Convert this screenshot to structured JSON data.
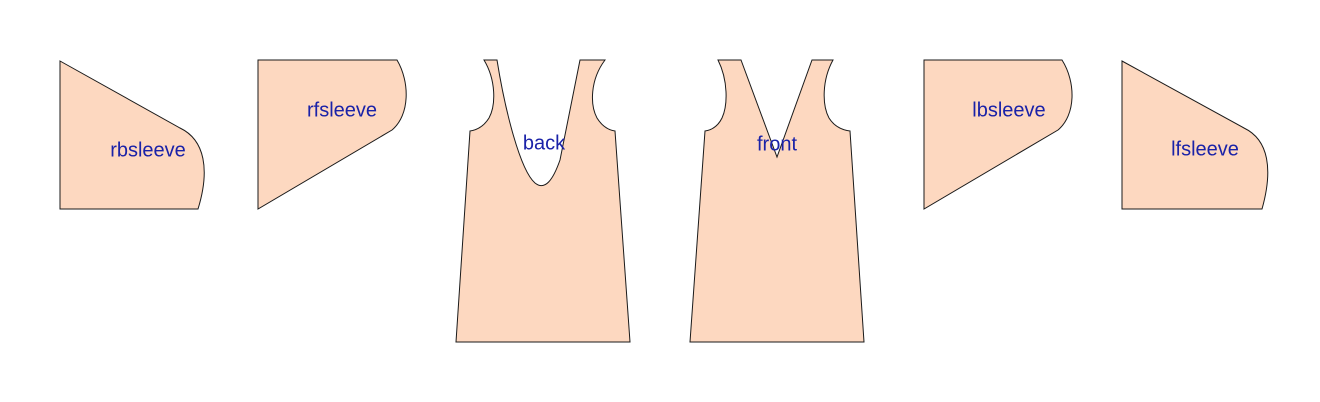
{
  "pieces": {
    "rbsleeve": {
      "label": "rbsleeve"
    },
    "rfsleeve": {
      "label": "rfsleeve"
    },
    "back": {
      "label": "back"
    },
    "front": {
      "label": "front"
    },
    "lbsleeve": {
      "label": "lbsleeve"
    },
    "lfsleeve": {
      "label": "lfsleeve"
    }
  },
  "colors": {
    "piece_fill": "#fdd8c0",
    "outline": "#1a1a1a",
    "label_text": "#1a22a8",
    "background": "#ffffff"
  }
}
